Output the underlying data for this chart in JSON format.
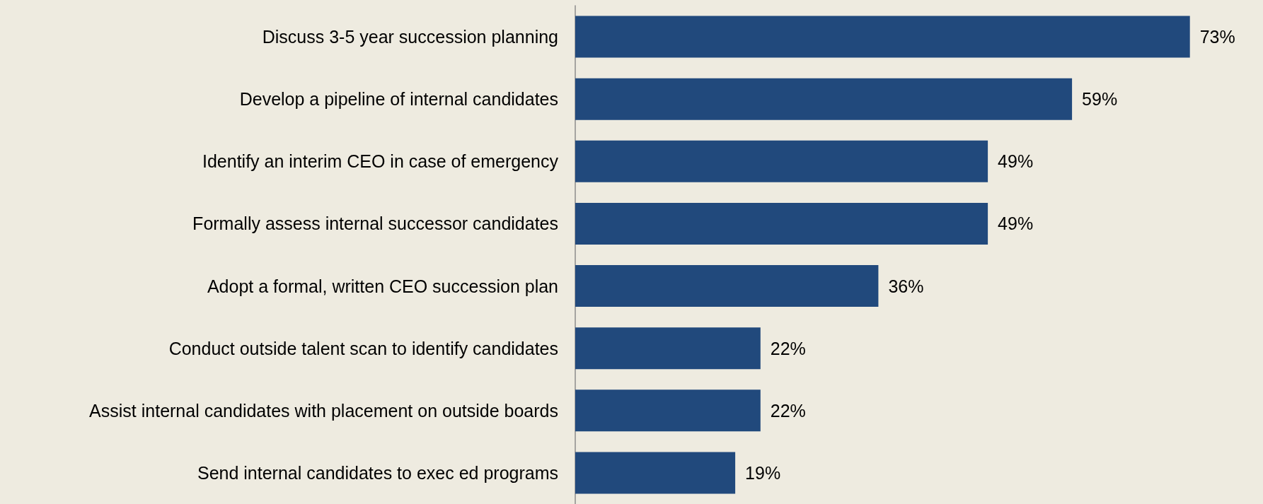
{
  "chart_data": {
    "type": "bar",
    "orientation": "horizontal",
    "categories": [
      "Discuss 3-5 year succession planning",
      "Develop a pipeline of internal candidates",
      "Identify an interim CEO in case of emergency",
      "Formally assess internal successor candidates",
      "Adopt a formal, written CEO succession plan",
      "Conduct outside talent scan to identify candidates",
      "Assist internal candidates with placement on outside boards",
      "Send internal candidates to exec ed programs"
    ],
    "values": [
      73,
      59,
      49,
      49,
      36,
      22,
      22,
      19
    ],
    "value_labels": [
      "73%",
      "59%",
      "49%",
      "49%",
      "36%",
      "22%",
      "22%",
      "19%"
    ],
    "color": "#21497c",
    "grid": false
  }
}
